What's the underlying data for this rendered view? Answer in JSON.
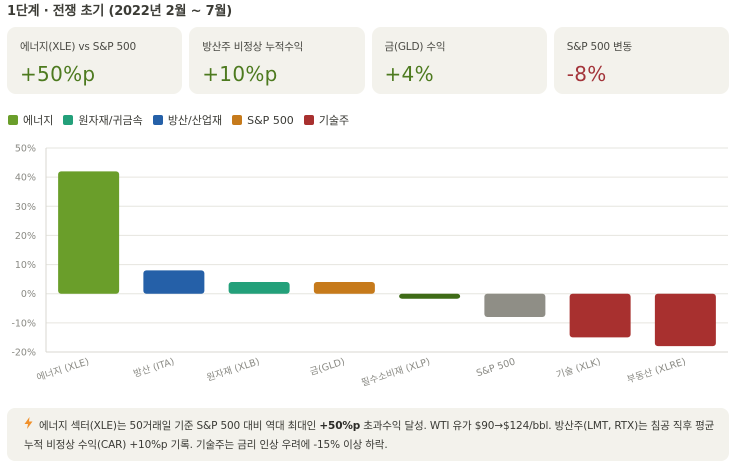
{
  "title": "1단계 · 전쟁 초기 (2022년 2월 ~ 7월)",
  "cards": [
    {
      "label": "에너지(XLE) vs S&P 500",
      "value": "+50%p",
      "color": "#4d7a1f"
    },
    {
      "label": "방산주 비정상 누적수익",
      "value": "+10%p",
      "color": "#4d7a1f"
    },
    {
      "label": "금(GLD) 수익",
      "value": "+4%",
      "color": "#4d7a1f"
    },
    {
      "label": "S&P 500 변동",
      "value": "-8%",
      "color": "#a3343a"
    }
  ],
  "legend": [
    {
      "label": "에너지",
      "color": "#6a9e2a"
    },
    {
      "label": "원자재/귀금속",
      "color": "#23a07a"
    },
    {
      "label": "방산/산업재",
      "color": "#2560a8"
    },
    {
      "label": "S&P 500",
      "color": "#c67a1b"
    },
    {
      "label": "기술주",
      "color": "#a8302f"
    }
  ],
  "chart_data": {
    "type": "bar",
    "categories": [
      "에너지 (XLE)",
      "방산 (ITA)",
      "원자재 (XLB)",
      "금(GLD)",
      "필수소비재 (XLP)",
      "S&P 500",
      "기술 (XLK)",
      "부동산 (XLRE)"
    ],
    "values": [
      42,
      8,
      4,
      4,
      -1.5,
      -8,
      -15,
      -18
    ],
    "colors": [
      "#6a9e2a",
      "#2560a8",
      "#23a07a",
      "#c67a1b",
      "#3f6b17",
      "#8f8e86",
      "#a8302f",
      "#a8302f"
    ],
    "ylim": [
      -20,
      50
    ],
    "yticks": [
      "-20%",
      "-10%",
      "0%",
      "10%",
      "20%",
      "30%",
      "40%",
      "50%"
    ],
    "ytick_values": [
      -20,
      -10,
      0,
      10,
      20,
      30,
      40,
      50
    ],
    "grid": true
  },
  "note": {
    "icon": "lightning-icon",
    "text_1": "에너지 섹터(XLE)는 50거래일 기준 S&P 500 대비 역대 최대인 ",
    "bold": "+50%p",
    "text_2": " 초과수익 달성. WTI 유가 $90→$124/bbl. 방산주(LMT, RTX)는 침공 직후 평균 누적 비정상 수익(CAR) +10%p 기록. 기술주는 금리 인상 우려에 -15% 이상 하락."
  }
}
